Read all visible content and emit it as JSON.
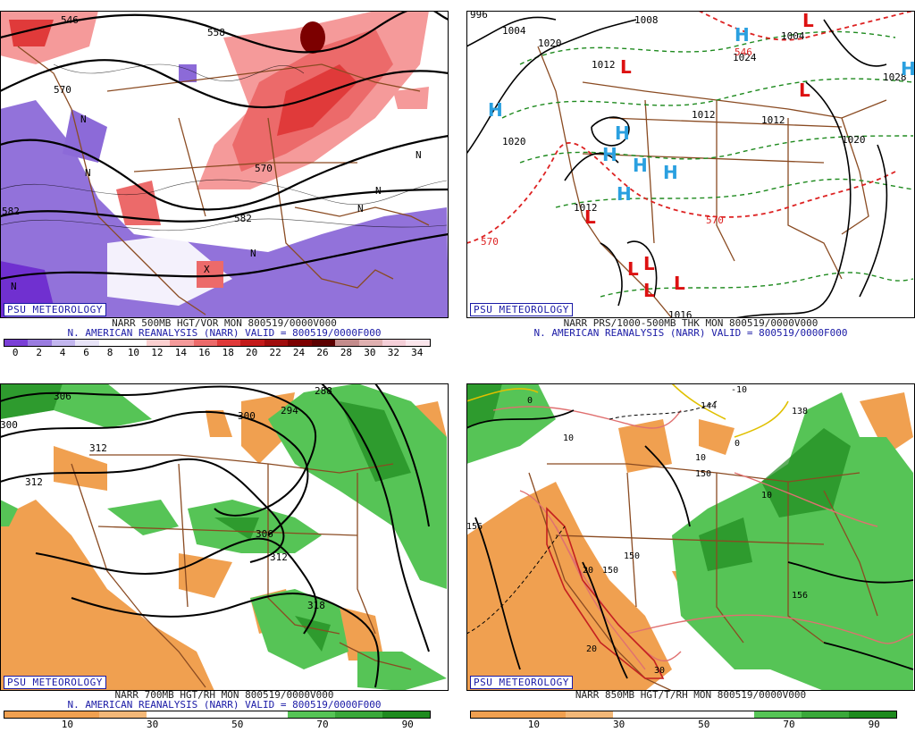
{
  "brand": "PSU METEOROLOGY",
  "panels": [
    {
      "id": "vor500",
      "caption1": "NARR 500MB HGT/VOR MON 800519/0000V000",
      "caption2": "N. AMERICAN REANALYSIS (NARR) VALID = 800519/0000F000",
      "contour_labels": [
        "546",
        "558",
        "570",
        "570",
        "582",
        "582",
        "N",
        "N",
        "N",
        "N",
        "N",
        "N",
        "N",
        "X"
      ],
      "colorbar": {
        "colors": [
          "#7a3fd6",
          "#9a7ce0",
          "#c2b6ee",
          "#e8e4f8",
          "#ffffff",
          "#ffffff",
          "#fbd0d0",
          "#f59a9a",
          "#ec6a6a",
          "#e03a3a",
          "#c41a1a",
          "#a00d0d",
          "#7c0000",
          "#5c0000",
          "#c48c8c",
          "#e0b0b0",
          "#f5cfd8",
          "#fbe6ec"
        ],
        "tick_labels": [
          "0",
          "2",
          "4",
          "6",
          "8",
          "10",
          "12",
          "14",
          "16",
          "18",
          "20",
          "22",
          "24",
          "26",
          "28",
          "30",
          "32",
          "34"
        ]
      }
    },
    {
      "id": "prs1000_500",
      "caption1": "NARR PRS/1000-500MB THK MON 800519/0000V000",
      "caption2": "N. AMERICAN REANALYSIS (NARR) VALID = 800519/0000F000",
      "contour_labels": [
        "996",
        "1004",
        "1004",
        "1008",
        "1012",
        "1012",
        "1012",
        "1012",
        "1016",
        "1020",
        "1020",
        "1024",
        "1028",
        "1020",
        "546",
        "570",
        "570"
      ],
      "high_label": "H",
      "low_label": "L"
    },
    {
      "id": "rh700",
      "caption1": "NARR 700MB HGT/RH MON 800519/0000V000",
      "caption2": "N. AMERICAN REANALYSIS (NARR) VALID = 800519/0000F000",
      "contour_labels": [
        "300",
        "294",
        "288",
        "300",
        "306",
        "312",
        "306",
        "312",
        "312",
        "318"
      ],
      "colorbar": {
        "colors": [
          "#f0a050",
          "#f0a050",
          "#f3b878",
          "#ffffff",
          "#ffffff",
          "#ffffff",
          "#56c456",
          "#3aa83a",
          "#1e8a1e"
        ],
        "tick_labels": [
          "10",
          "30",
          "50",
          "70",
          "90"
        ]
      }
    },
    {
      "id": "t850",
      "caption1": "NARR 850MB HGT/T/RH MON 800519/0000V000",
      "caption2": "",
      "contour_labels": [
        "0",
        "0",
        "10",
        "10",
        "10",
        "20",
        "20",
        "30",
        "-10",
        "150",
        "150",
        "150",
        "156",
        "156",
        "138",
        "144"
      ],
      "colorbar": {
        "colors": [
          "#f0a050",
          "#f0a050",
          "#f3b878",
          "#ffffff",
          "#ffffff",
          "#ffffff",
          "#56c456",
          "#3aa83a",
          "#1e8a1e"
        ],
        "tick_labels": [
          "10",
          "30",
          "50",
          "70",
          "90"
        ]
      }
    }
  ],
  "colors": {
    "contour": "#000000",
    "coast": "#8a4b22",
    "high": "#2aa0e0",
    "low": "#dd1111",
    "thickness": "#dd2222",
    "vort_pos": "#e64b4b",
    "vort_neg": "#8c6ad8",
    "rh_dry": "#f0a050",
    "rh_wet": "#3cb43c",
    "temp": "#e07070",
    "freeze": "#e0c000",
    "caption": "#1a1aa6"
  }
}
